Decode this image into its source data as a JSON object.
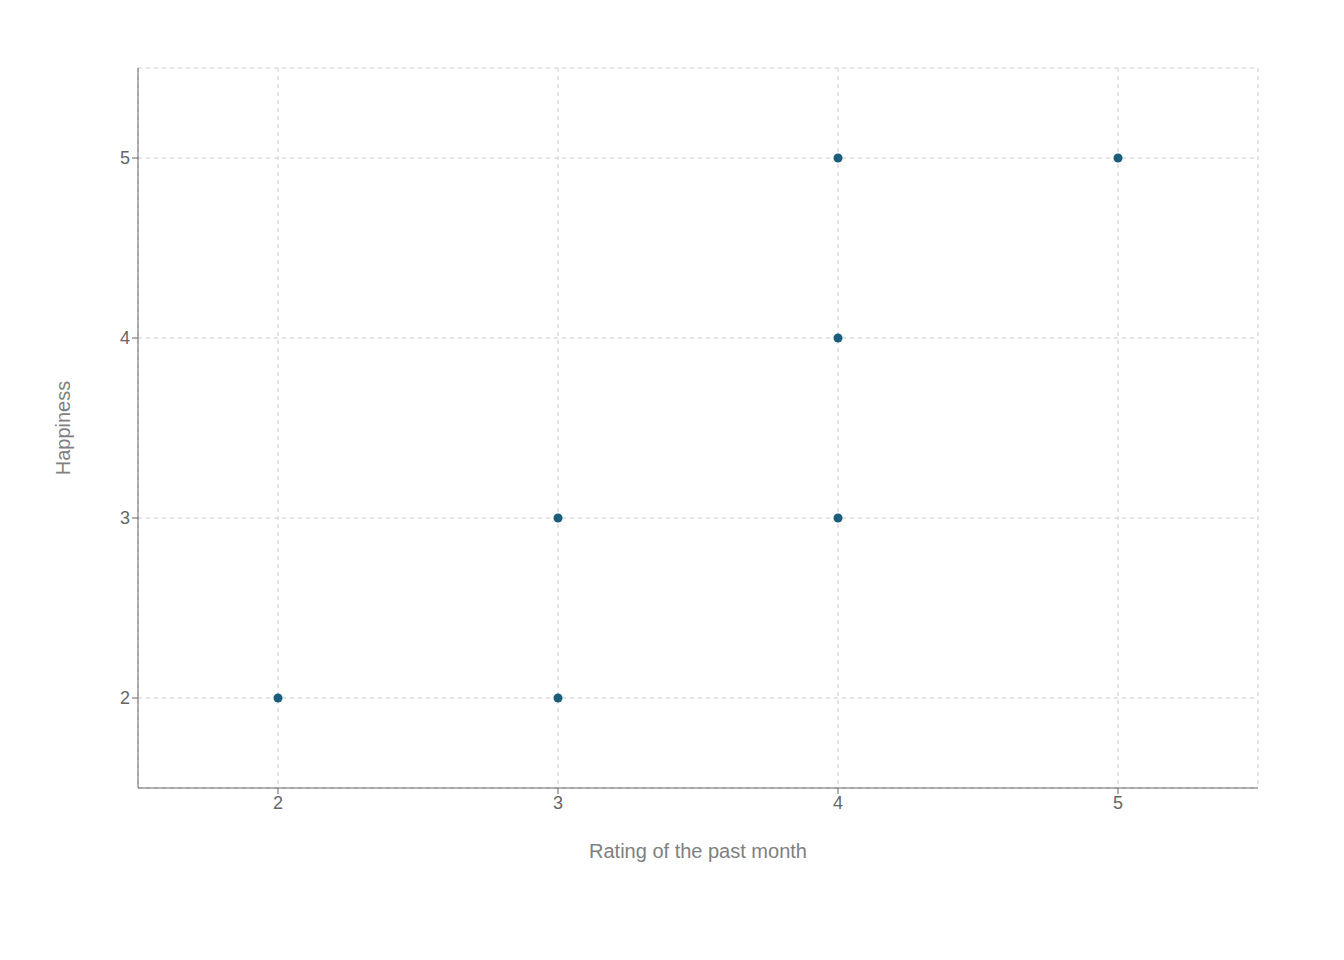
{
  "chart_data": {
    "type": "scatter",
    "x": [
      2,
      3,
      3,
      4,
      4,
      4,
      5
    ],
    "values": [
      2,
      2,
      3,
      3,
      4,
      5,
      5
    ],
    "color": "#1b5e7b",
    "xlabel": "Rating of the past month",
    "ylabel": "Happiness",
    "xlim": [
      1.5,
      5.5
    ],
    "ylim": [
      1.5,
      5.5
    ],
    "xticks": [
      2,
      3,
      4,
      5
    ],
    "yticks": [
      2,
      3,
      4,
      5
    ],
    "grid": true
  }
}
